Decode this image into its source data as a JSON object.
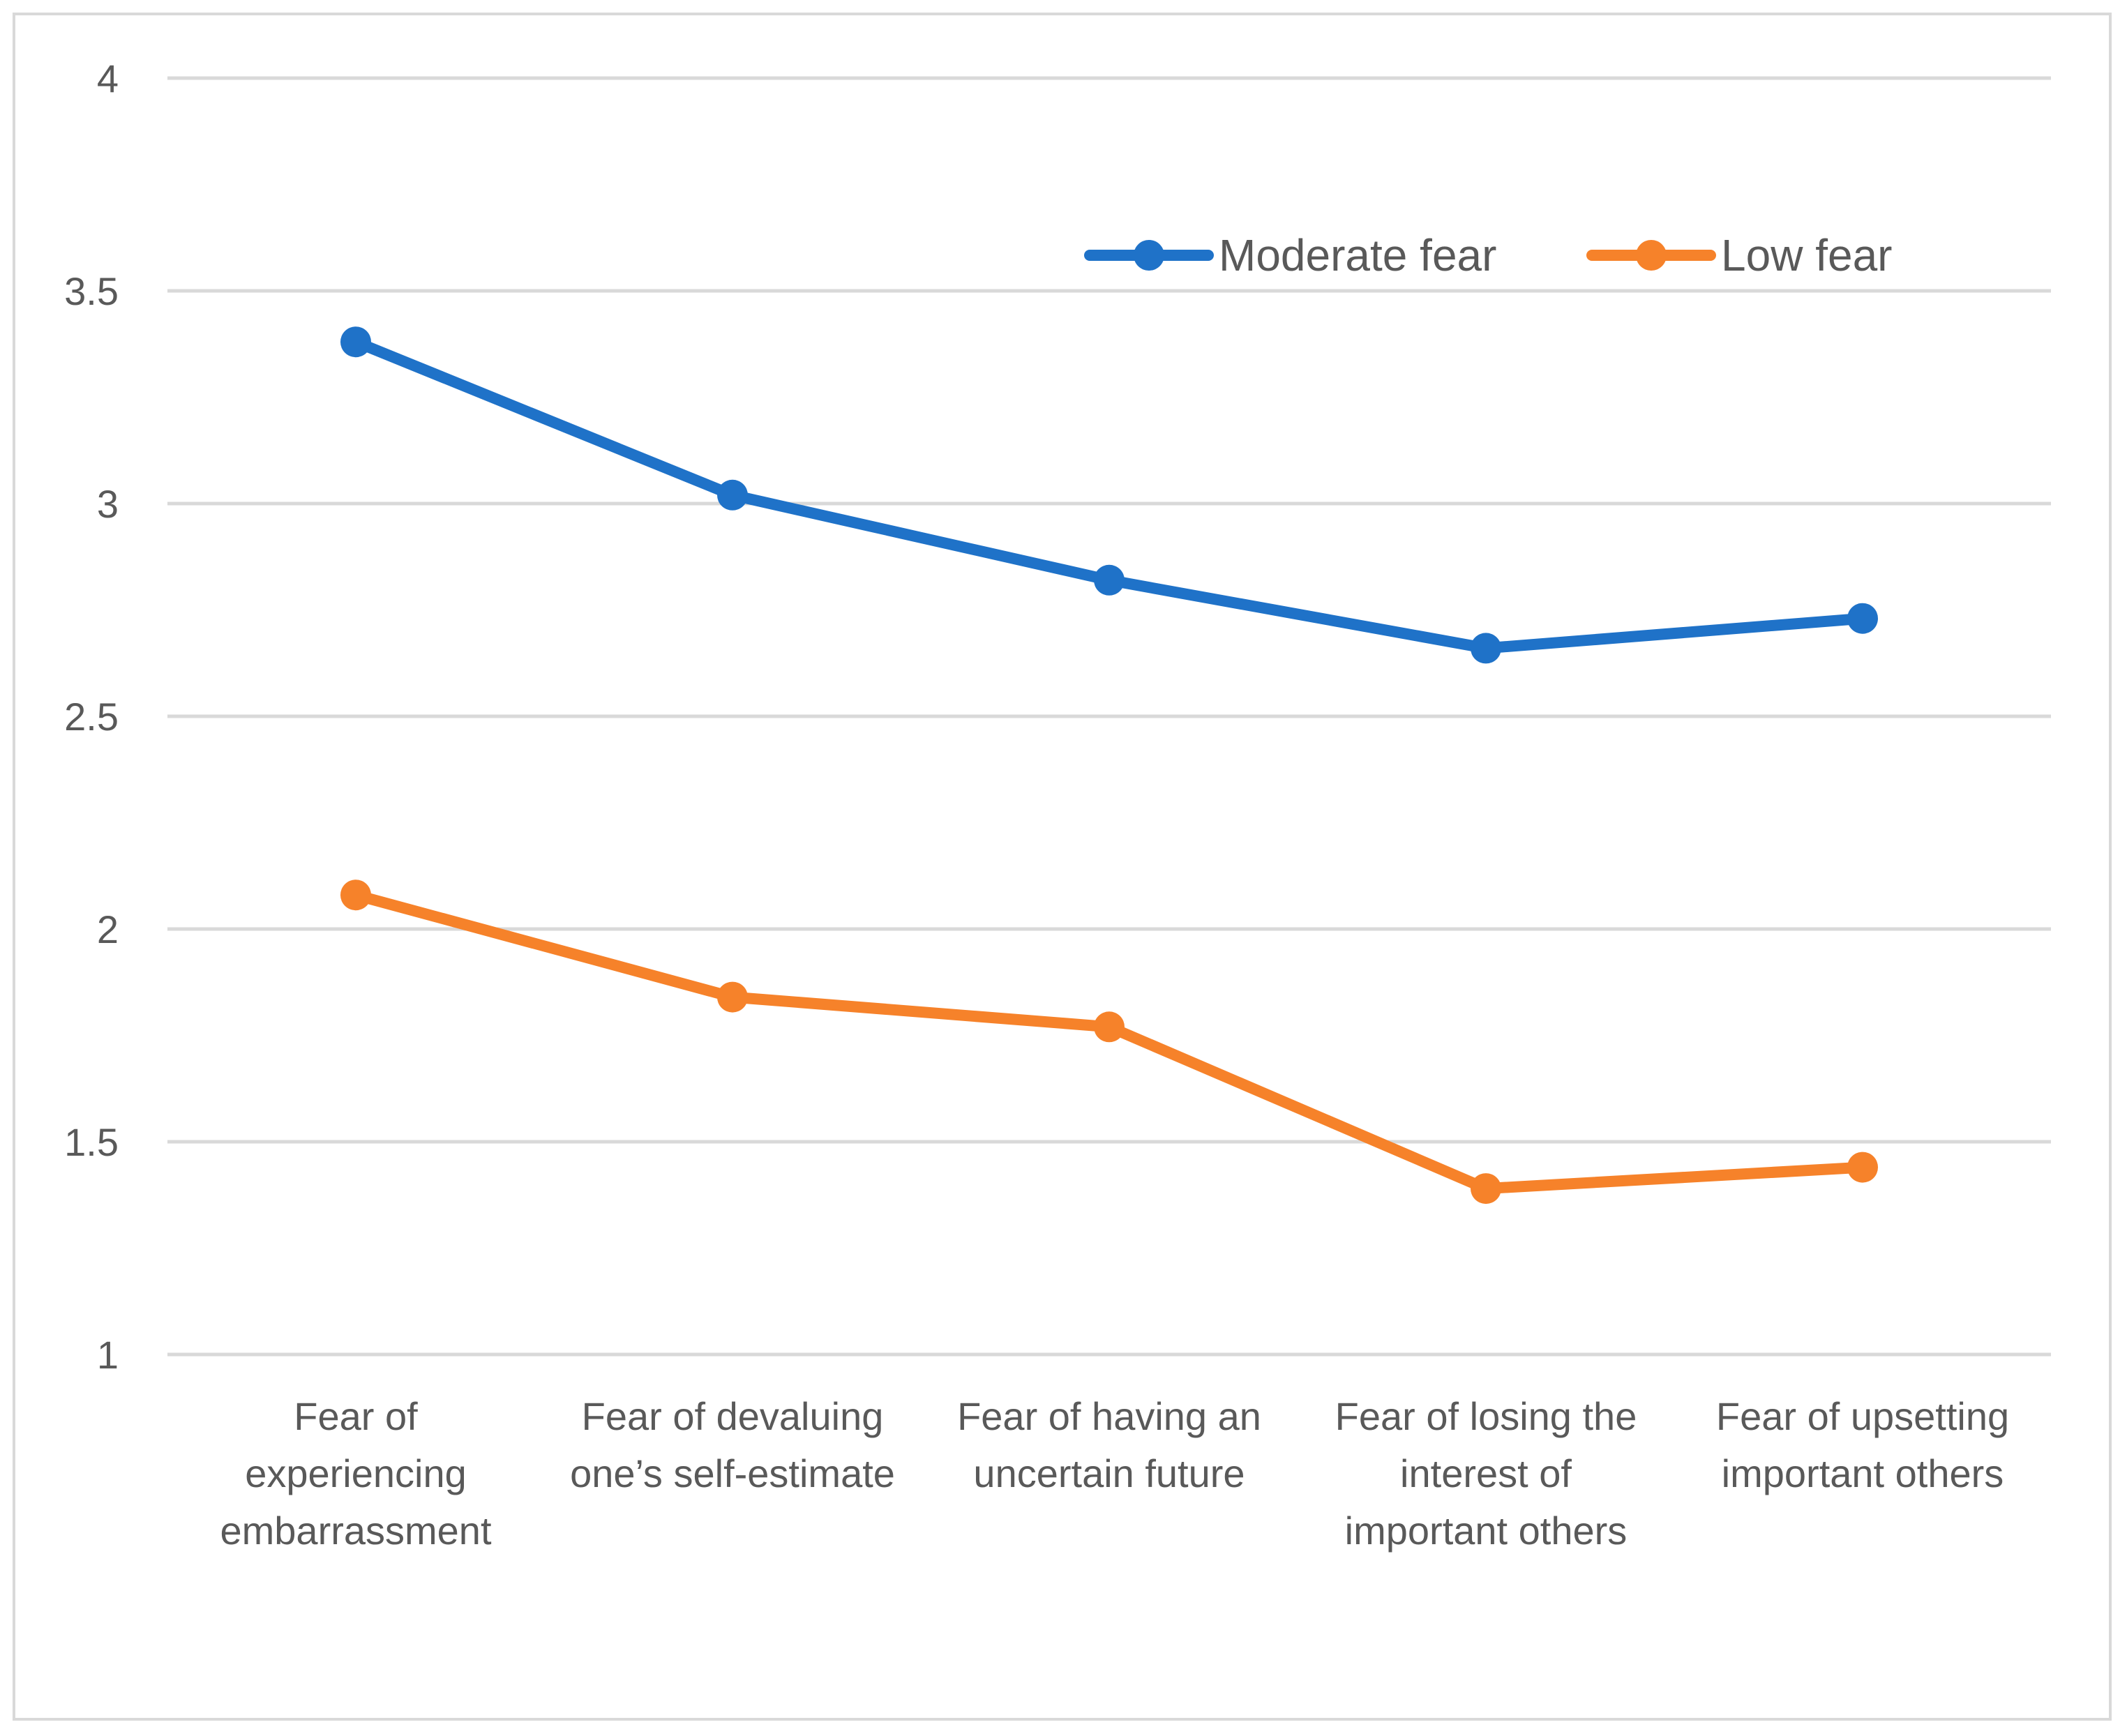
{
  "chart_data": {
    "type": "line",
    "title": "",
    "xlabel": "",
    "ylabel": "",
    "ylim": [
      1,
      4
    ],
    "yticks": [
      "1",
      "1.5",
      "2",
      "2.5",
      "3",
      "3.5",
      "4"
    ],
    "yticks_values": [
      1,
      1.5,
      2,
      2.5,
      3,
      3.5,
      4
    ],
    "grid": true,
    "legend_position": "top-right",
    "categories": [
      [
        "Fear of",
        "experiencing",
        "embarrassment"
      ],
      [
        "Fear of devaluing",
        "one’s self-estimate"
      ],
      [
        "Fear of having an",
        "uncertain future"
      ],
      [
        "Fear of losing the",
        "interest of",
        "important others"
      ],
      [
        "Fear of upsetting",
        "important others"
      ]
    ],
    "series": [
      {
        "name": "Moderate fear",
        "color": "#1f72c8",
        "values": [
          3.38,
          3.02,
          2.82,
          2.66,
          2.73
        ]
      },
      {
        "name": "Low fear",
        "color": "#f6822a",
        "values": [
          2.08,
          1.84,
          1.77,
          1.39,
          1.44
        ]
      }
    ],
    "gridline_color": "#d9d9d9"
  }
}
